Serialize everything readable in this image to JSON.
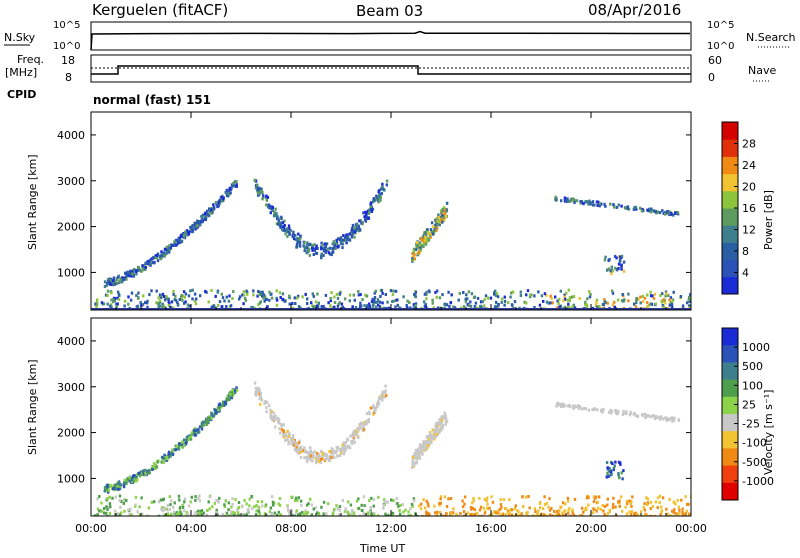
{
  "header": {
    "station": "Kerguelen (fitACF)",
    "beam": "Beam 03",
    "date": "08/Apr/2016"
  },
  "panels": {
    "nsky_label": "N.Sky",
    "nsearch_label": "N.Search",
    "count_ticks_top": "10^5",
    "count_ticks_bottom": "10^0",
    "freq_label_line1": "Freq.",
    "freq_label_line2": "[MHz]",
    "freq_ticks": [
      "18",
      "8"
    ],
    "nave_label": "Nave",
    "nave_ticks": [
      "60",
      "0"
    ],
    "cpid_label": "CPID",
    "cpid_text": "normal (fast) 151"
  },
  "colors": {
    "power": [
      "#1a2bd6",
      "#2a52b8",
      "#2b5fa3",
      "#3e7f8e",
      "#5e9b5e",
      "#8cc43c",
      "#f1c232",
      "#f08a14",
      "#e0300a",
      "#d50000"
    ],
    "velocity": [
      "#e00000",
      "#f04010",
      "#f08a14",
      "#f1c232",
      "#c8c8c8",
      "#8cd24a",
      "#4e9e4e",
      "#3e7f8e",
      "#2a52b8",
      "#1a2bd6"
    ],
    "ground": "#2b3a9a"
  },
  "chart_data": [
    {
      "type": "heatmap",
      "name": "power",
      "ylabel": "Slant Range [km]",
      "xlabel": "Time UT",
      "x_ticks": [
        "00:00",
        "04:00",
        "08:00",
        "12:00",
        "16:00",
        "20:00",
        "00:00"
      ],
      "xlim_hours": [
        0,
        24
      ],
      "ylim": [
        180,
        4500
      ],
      "y_ticks": [
        1000,
        2000,
        3000,
        4000
      ],
      "colorbar": {
        "label": "Power [dB]",
        "ticks": [
          "4",
          "8",
          "12",
          "16",
          "20",
          "24",
          "28"
        ],
        "range": [
          0,
          30
        ]
      },
      "features": [
        {
          "kind": "clutter",
          "x": [
            0,
            24
          ],
          "y": [
            180,
            650
          ]
        },
        {
          "kind": "arc",
          "x": [
            0.5,
            5.8
          ],
          "y": [
            800,
            3000
          ]
        },
        {
          "kind": "arc",
          "x": [
            6.5,
            11.8
          ],
          "y": [
            1500,
            3000
          ]
        },
        {
          "kind": "echo",
          "x": [
            12.8,
            14.2
          ],
          "y": [
            1400,
            2400
          ]
        },
        {
          "kind": "band",
          "x": [
            18.5,
            23.5
          ],
          "y": [
            2300,
            2650
          ]
        },
        {
          "kind": "blob",
          "x": [
            20.5,
            21.3
          ],
          "y": [
            1000,
            1400
          ]
        }
      ]
    },
    {
      "type": "heatmap",
      "name": "velocity",
      "ylabel": "Slant Range [km]",
      "xlabel": "Time UT",
      "x_ticks": [
        "00:00",
        "04:00",
        "08:00",
        "12:00",
        "16:00",
        "20:00",
        "00:00"
      ],
      "xlim_hours": [
        0,
        24
      ],
      "ylim": [
        180,
        4500
      ],
      "y_ticks": [
        1000,
        2000,
        3000,
        4000
      ],
      "colorbar": {
        "label": "Velocity [m s⁻¹]",
        "ticks": [
          "1000",
          "500",
          "100",
          "25",
          "-25",
          "-100",
          "-500",
          "-1000"
        ]
      },
      "features": [
        {
          "kind": "clutter",
          "x": [
            0,
            24
          ],
          "y": [
            180,
            650
          ]
        },
        {
          "kind": "arc",
          "x": [
            0.5,
            5.8
          ],
          "y": [
            800,
            3000
          ]
        },
        {
          "kind": "arc",
          "x": [
            6.5,
            11.8
          ],
          "y": [
            1500,
            3000
          ]
        },
        {
          "kind": "echo",
          "x": [
            12.8,
            14.2
          ],
          "y": [
            1400,
            2400
          ]
        },
        {
          "kind": "band",
          "x": [
            18.5,
            23.5
          ],
          "y": [
            2300,
            2650
          ]
        },
        {
          "kind": "blob",
          "x": [
            20.5,
            21.3
          ],
          "y": [
            1000,
            1400
          ]
        }
      ]
    }
  ]
}
